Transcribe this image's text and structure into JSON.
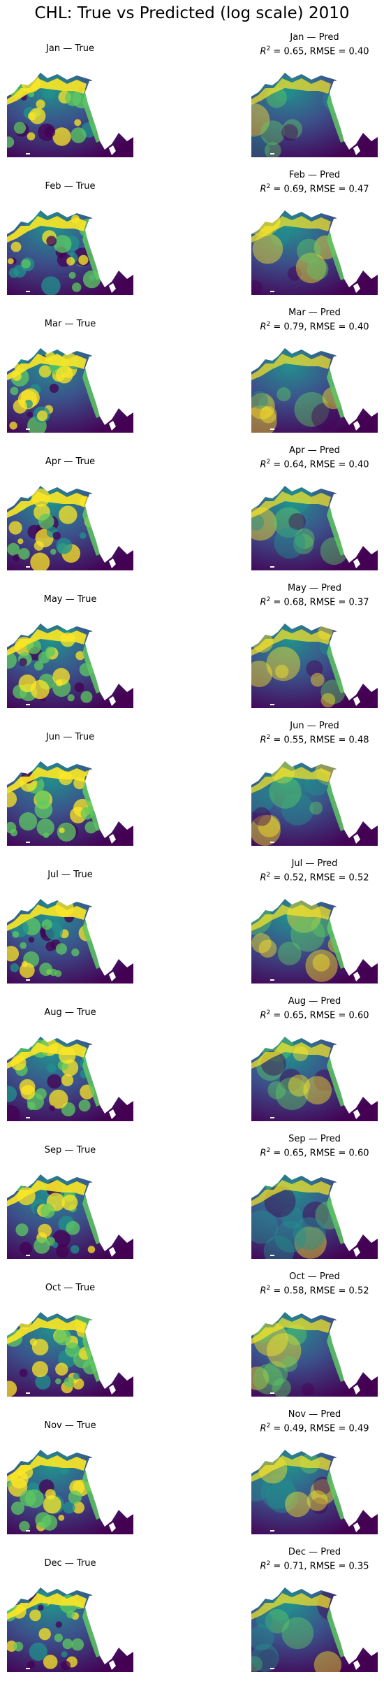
{
  "title": "CHL: True vs Predicted (log scale) 2010",
  "labels": {
    "true_suffix": " — True",
    "pred_suffix": " — Pred",
    "r2_symbol": "R",
    "r2_power": "2",
    "rmse_label": "RMSE ="
  },
  "colors": {
    "low": "#440154",
    "mid_low": "#3b528b",
    "mid": "#21918c",
    "mid_high": "#5ec962",
    "high": "#fde725",
    "missing": "#ffffff"
  },
  "chart_data": {
    "type": "heatmap",
    "colormap": "viridis",
    "scale": "log",
    "grid": false,
    "panels": [
      {
        "month": "Jan",
        "r2": "0.65",
        "rmse": "0.40"
      },
      {
        "month": "Feb",
        "r2": "0.69",
        "rmse": "0.47"
      },
      {
        "month": "Mar",
        "r2": "0.79",
        "rmse": "0.40"
      },
      {
        "month": "Apr",
        "r2": "0.64",
        "rmse": "0.40"
      },
      {
        "month": "May",
        "r2": "0.68",
        "rmse": "0.37"
      },
      {
        "month": "Jun",
        "r2": "0.55",
        "rmse": "0.48"
      },
      {
        "month": "Jul",
        "r2": "0.52",
        "rmse": "0.52"
      },
      {
        "month": "Aug",
        "r2": "0.65",
        "rmse": "0.60"
      },
      {
        "month": "Sep",
        "r2": "0.65",
        "rmse": "0.60"
      },
      {
        "month": "Oct",
        "r2": "0.58",
        "rmse": "0.52"
      },
      {
        "month": "Nov",
        "r2": "0.49",
        "rmse": "0.49"
      },
      {
        "month": "Dec",
        "r2": "0.71",
        "rmse": "0.35"
      }
    ]
  }
}
